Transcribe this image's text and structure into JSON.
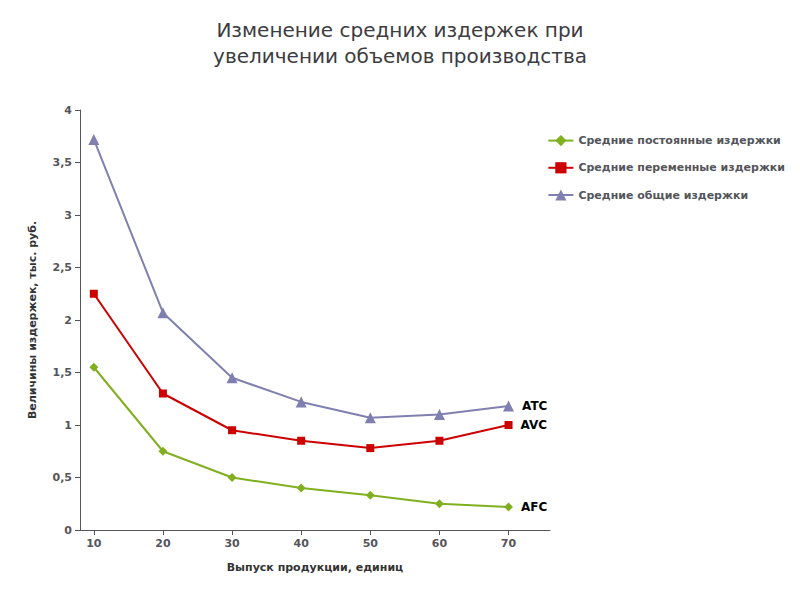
{
  "chart_data": {
    "type": "line",
    "title": "Изменение средних издержек при\nувеличении объемов производства",
    "xlabel": "Выпуск продукции, единиц",
    "ylabel": "Величины издержек, тыс. руб.",
    "x": [
      10,
      20,
      30,
      40,
      50,
      60,
      70
    ],
    "series": [
      {
        "name": "Средние постоянные издержки",
        "color": "#80B020",
        "marker": "diamond",
        "annotation": "AFC",
        "values": [
          1.55,
          0.75,
          0.5,
          0.4,
          0.33,
          0.25,
          0.22
        ]
      },
      {
        "name": "Средние переменные издержки",
        "color": "#CC0000",
        "marker": "square",
        "annotation": "AVC",
        "values": [
          2.25,
          1.3,
          0.95,
          0.85,
          0.78,
          0.85,
          1.0
        ]
      },
      {
        "name": "Средние общие издержки",
        "color": "#8080B0",
        "marker": "triangle",
        "annotation": "ATC",
        "values": [
          3.72,
          2.07,
          1.45,
          1.22,
          1.07,
          1.1,
          1.18
        ]
      }
    ],
    "xlim": [
      8,
      76
    ],
    "xticks": [
      10,
      20,
      30,
      40,
      50,
      60,
      70
    ],
    "ylim": [
      0,
      4
    ],
    "yticks": [
      0,
      {
        "value": 0.5,
        "label": "0,5"
      },
      1,
      {
        "value": 1.5,
        "label": "1,5"
      },
      2,
      {
        "value": 2.5,
        "label": "2,5"
      },
      3,
      {
        "value": 3.5,
        "label": "3,5"
      },
      4
    ],
    "grid": false,
    "legend": "right"
  }
}
